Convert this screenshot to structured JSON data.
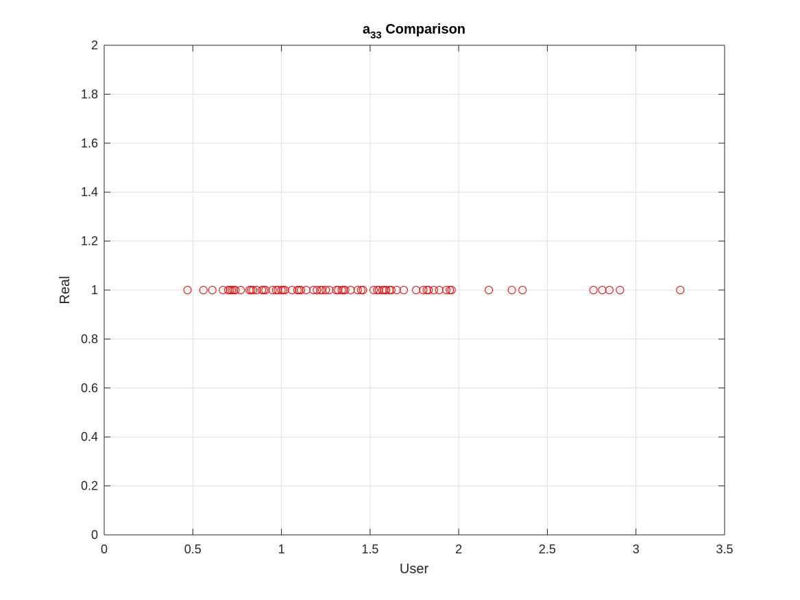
{
  "chart_data": {
    "type": "scatter",
    "title": {
      "base": "a",
      "subscript": "33",
      "rest": " Comparison"
    },
    "xlabel": "User",
    "ylabel": "Real",
    "xlim": [
      0,
      3.5
    ],
    "ylim": [
      0,
      2
    ],
    "x_ticks": [
      0,
      0.5,
      1,
      1.5,
      2,
      2.5,
      3,
      3.5
    ],
    "x_tick_labels": [
      "0",
      "0.5",
      "1",
      "1.5",
      "2",
      "2.5",
      "3",
      "3.5"
    ],
    "y_ticks": [
      0,
      0.2,
      0.4,
      0.6,
      0.8,
      1,
      1.2,
      1.4,
      1.6,
      1.8,
      2
    ],
    "y_tick_labels": [
      "0",
      "0.2",
      "0.4",
      "0.6",
      "0.8",
      "1",
      "1.2",
      "1.4",
      "1.6",
      "1.8",
      "2"
    ],
    "grid": true,
    "box": true,
    "marker": "circle-open",
    "marker_color": "#ff0000",
    "series": [
      {
        "points": [
          {
            "x": 0.47,
            "y": 1
          },
          {
            "x": 0.56,
            "y": 1
          },
          {
            "x": 0.61,
            "y": 1
          },
          {
            "x": 0.67,
            "y": 1
          },
          {
            "x": 0.7,
            "y": 1
          },
          {
            "x": 0.71,
            "y": 1
          },
          {
            "x": 0.72,
            "y": 1
          },
          {
            "x": 0.73,
            "y": 1
          },
          {
            "x": 0.74,
            "y": 1
          },
          {
            "x": 0.77,
            "y": 1
          },
          {
            "x": 0.82,
            "y": 1
          },
          {
            "x": 0.83,
            "y": 1
          },
          {
            "x": 0.84,
            "y": 1
          },
          {
            "x": 0.86,
            "y": 1
          },
          {
            "x": 0.89,
            "y": 1
          },
          {
            "x": 0.9,
            "y": 1
          },
          {
            "x": 0.91,
            "y": 1
          },
          {
            "x": 0.95,
            "y": 1
          },
          {
            "x": 0.97,
            "y": 1
          },
          {
            "x": 0.98,
            "y": 1
          },
          {
            "x": 1.0,
            "y": 1
          },
          {
            "x": 1.01,
            "y": 1
          },
          {
            "x": 1.02,
            "y": 1
          },
          {
            "x": 1.06,
            "y": 1
          },
          {
            "x": 1.09,
            "y": 1
          },
          {
            "x": 1.1,
            "y": 1
          },
          {
            "x": 1.11,
            "y": 1
          },
          {
            "x": 1.14,
            "y": 1
          },
          {
            "x": 1.18,
            "y": 1
          },
          {
            "x": 1.2,
            "y": 1
          },
          {
            "x": 1.22,
            "y": 1
          },
          {
            "x": 1.23,
            "y": 1
          },
          {
            "x": 1.25,
            "y": 1
          },
          {
            "x": 1.27,
            "y": 1
          },
          {
            "x": 1.31,
            "y": 1
          },
          {
            "x": 1.32,
            "y": 1
          },
          {
            "x": 1.34,
            "y": 1
          },
          {
            "x": 1.35,
            "y": 1
          },
          {
            "x": 1.36,
            "y": 1
          },
          {
            "x": 1.39,
            "y": 1
          },
          {
            "x": 1.43,
            "y": 1
          },
          {
            "x": 1.45,
            "y": 1
          },
          {
            "x": 1.46,
            "y": 1
          },
          {
            "x": 1.52,
            "y": 1
          },
          {
            "x": 1.54,
            "y": 1
          },
          {
            "x": 1.55,
            "y": 1
          },
          {
            "x": 1.57,
            "y": 1
          },
          {
            "x": 1.58,
            "y": 1
          },
          {
            "x": 1.59,
            "y": 1
          },
          {
            "x": 1.61,
            "y": 1
          },
          {
            "x": 1.62,
            "y": 1
          },
          {
            "x": 1.65,
            "y": 1
          },
          {
            "x": 1.69,
            "y": 1
          },
          {
            "x": 1.76,
            "y": 1
          },
          {
            "x": 1.8,
            "y": 1
          },
          {
            "x": 1.82,
            "y": 1
          },
          {
            "x": 1.83,
            "y": 1
          },
          {
            "x": 1.86,
            "y": 1
          },
          {
            "x": 1.89,
            "y": 1
          },
          {
            "x": 1.93,
            "y": 1
          },
          {
            "x": 1.95,
            "y": 1
          },
          {
            "x": 1.96,
            "y": 1
          },
          {
            "x": 2.17,
            "y": 1
          },
          {
            "x": 2.3,
            "y": 1
          },
          {
            "x": 2.36,
            "y": 1
          },
          {
            "x": 2.76,
            "y": 1
          },
          {
            "x": 2.81,
            "y": 1
          },
          {
            "x": 2.85,
            "y": 1
          },
          {
            "x": 2.91,
            "y": 1
          },
          {
            "x": 3.25,
            "y": 1
          }
        ]
      }
    ]
  }
}
